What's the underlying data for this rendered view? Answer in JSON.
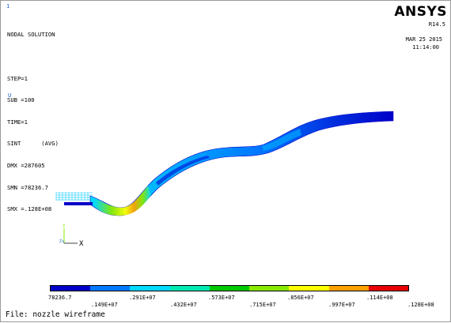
{
  "window_number": "1",
  "info_lines": [
    "NODAL SOLUTION",
    "",
    "STEP=1",
    "SUB =100",
    "TIME=1",
    "SINT      (AVG)",
    "DMX =287605",
    "SMN =78236.7",
    "SMX =.128E+08"
  ],
  "u_marker": "U",
  "logo": "ANSYS",
  "release": "R14.5",
  "date": "MAR 25 2015",
  "time": "11:14:00",
  "triad": {
    "x_label": "X",
    "y_label": "Y",
    "z_label": "Z"
  },
  "legend": {
    "colors": [
      "#0000c8",
      "#0078ff",
      "#00d8ff",
      "#00e8b0",
      "#00c800",
      "#88e800",
      "#ffff00",
      "#ffa000",
      "#e80000"
    ],
    "labels_top_row": [
      "78236.7",
      ".291E+07",
      ".573E+07",
      ".856E+07",
      ".114E+08"
    ],
    "labels_bottom_row": [
      ".149E+07",
      ".432E+07",
      ".715E+07",
      ".997E+07",
      ".128E+08"
    ]
  },
  "file_label": "File: nozzle wireframe"
}
